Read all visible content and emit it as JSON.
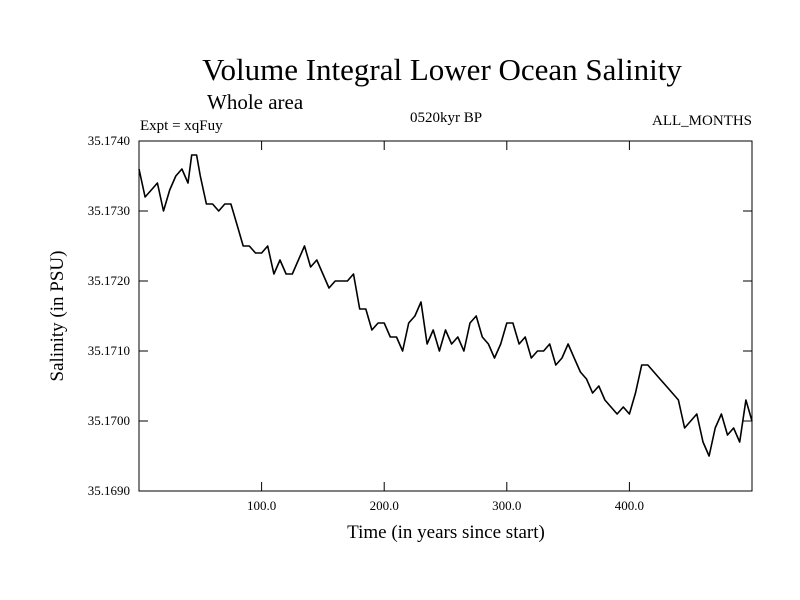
{
  "chart_data": {
    "type": "line",
    "title": "Volume Integral Lower Ocean Salinity",
    "subtitle": "Whole area",
    "experiment": "Expt = xqFuy",
    "period": "0520kyr BP",
    "season": "ALL_MONTHS",
    "xlabel": "Time (in years since start)",
    "ylabel": "Salinity (in PSU)",
    "xlim": [
      0,
      500
    ],
    "ylim": [
      35.169,
      35.174
    ],
    "x_ticks": [
      100,
      200,
      300,
      400
    ],
    "x_tick_labels": [
      "100.0",
      "200.0",
      "300.0",
      "400.0"
    ],
    "y_ticks": [
      35.169,
      35.17,
      35.171,
      35.172,
      35.173,
      35.174
    ],
    "y_tick_labels": [
      "35.1690",
      "35.1700",
      "35.1710",
      "35.1720",
      "35.1730",
      "35.1740"
    ],
    "series": [
      {
        "name": "salinity",
        "color": "#000000",
        "x": [
          0,
          5,
          10,
          15,
          20,
          25,
          30,
          35,
          40,
          43,
          47,
          50,
          55,
          60,
          65,
          70,
          75,
          80,
          85,
          90,
          95,
          100,
          105,
          110,
          115,
          120,
          125,
          130,
          135,
          140,
          145,
          150,
          155,
          160,
          165,
          170,
          175,
          180,
          185,
          190,
          195,
          200,
          205,
          210,
          215,
          220,
          225,
          230,
          235,
          240,
          245,
          250,
          255,
          260,
          265,
          270,
          275,
          280,
          285,
          290,
          295,
          300,
          305,
          310,
          315,
          320,
          325,
          330,
          335,
          340,
          345,
          350,
          355,
          360,
          365,
          370,
          375,
          380,
          385,
          390,
          395,
          400,
          405,
          410,
          415,
          420,
          425,
          430,
          435,
          440,
          445,
          450,
          455,
          460,
          465,
          470,
          475,
          480,
          485,
          490,
          495,
          500
        ],
        "values": [
          35.1736,
          35.1732,
          35.1733,
          35.1734,
          35.173,
          35.1733,
          35.1735,
          35.1736,
          35.1734,
          35.1738,
          35.1738,
          35.1735,
          35.1731,
          35.1731,
          35.173,
          35.1731,
          35.1731,
          35.1728,
          35.1725,
          35.1725,
          35.1724,
          35.1724,
          35.1725,
          35.1721,
          35.1723,
          35.1721,
          35.1721,
          35.1723,
          35.1725,
          35.1722,
          35.1723,
          35.1721,
          35.1719,
          35.172,
          35.172,
          35.172,
          35.1721,
          35.1716,
          35.1716,
          35.1713,
          35.1714,
          35.1714,
          35.1712,
          35.1712,
          35.171,
          35.1714,
          35.1715,
          35.1717,
          35.1711,
          35.1713,
          35.171,
          35.1713,
          35.1711,
          35.1712,
          35.171,
          35.1714,
          35.1715,
          35.1712,
          35.1711,
          35.1709,
          35.1711,
          35.1714,
          35.1714,
          35.1711,
          35.1712,
          35.1709,
          35.171,
          35.171,
          35.1711,
          35.1708,
          35.1709,
          35.1711,
          35.1709,
          35.1707,
          35.1706,
          35.1704,
          35.1705,
          35.1703,
          35.1702,
          35.1701,
          35.1702,
          35.1701,
          35.1704,
          35.1708,
          35.1708,
          35.1707,
          35.1706,
          35.1705,
          35.1704,
          35.1703,
          35.1699,
          35.17,
          35.1701,
          35.1697,
          35.1695,
          35.1699,
          35.1701,
          35.1698,
          35.1699,
          35.1697,
          35.1703,
          35.17
        ]
      }
    ]
  }
}
